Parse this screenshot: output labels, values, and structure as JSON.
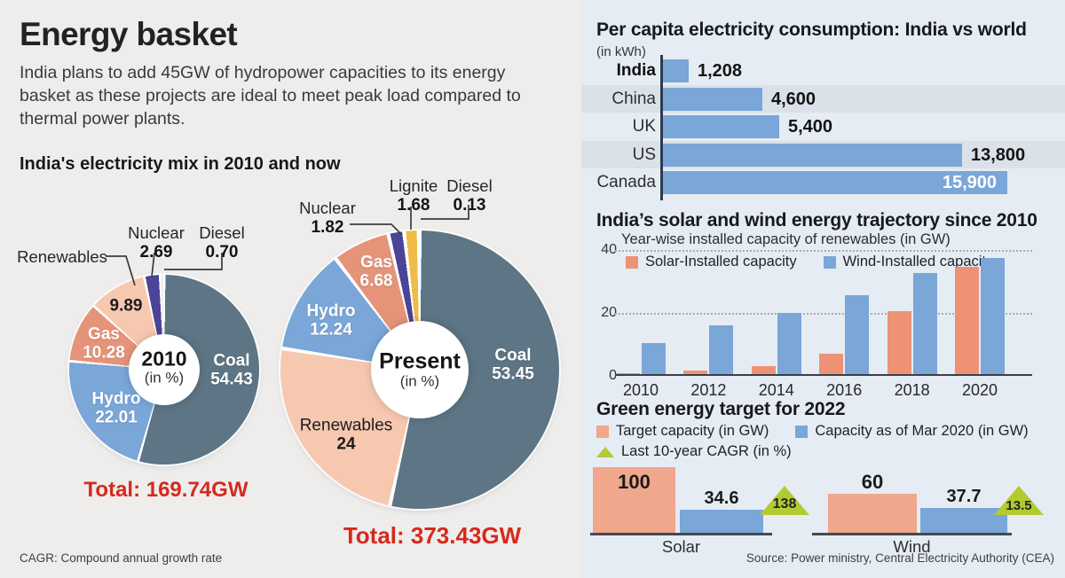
{
  "left": {
    "title": "Energy basket",
    "intro": "India plans to add 45GW of hydropower capacities to its energy basket as these projects are ideal to meet peak load compared to thermal power plants.",
    "section_title": "India's electricity mix in 2010 and now",
    "footnote": "CAGR: Compound annual growth rate"
  },
  "right": {
    "source": "Source: Power ministry, Central Electricity Authority (CEA)"
  },
  "colors": {
    "coal": "#5d7585",
    "hydro": "#7aa6d8",
    "gas": "#e5947a",
    "renewables": "#f6c8b0",
    "nuclear": "#4b4497",
    "lignite": "#f0bc47",
    "diesel": "#eae7e3",
    "bar_blue": "#7aa6d8",
    "solar_salmon": "#ee9276",
    "target_salmon": "#f0a78c",
    "cagr_green": "#b3ca31",
    "accent_red": "#d6291d"
  },
  "chart_data": [
    {
      "type": "pie",
      "name": "electricity_mix_2010",
      "center_label": "2010",
      "center_sub": "(in %)",
      "total": "Total: 169.74GW",
      "slices": [
        {
          "label": "Coal",
          "value": 54.43,
          "display": "54.43",
          "color": "#5d7585"
        },
        {
          "label": "Hydro",
          "value": 22.01,
          "display": "22.01",
          "color": "#7aa6d8"
        },
        {
          "label": "Gas",
          "value": 10.28,
          "display": "10.28",
          "color": "#e5947a"
        },
        {
          "label": "Renewables",
          "value": 9.89,
          "display": "9.89",
          "color": "#f6c8b0"
        },
        {
          "label": "Nuclear",
          "value": 2.69,
          "display": "2.69",
          "color": "#4b4497"
        },
        {
          "label": "Diesel",
          "value": 0.7,
          "display": "0.70",
          "color": "#eae7e3"
        }
      ]
    },
    {
      "type": "pie",
      "name": "electricity_mix_present",
      "center_label": "Present",
      "center_sub": "(in %)",
      "total": "Total: 373.43GW",
      "slices": [
        {
          "label": "Coal",
          "value": 53.45,
          "display": "53.45",
          "color": "#5d7585"
        },
        {
          "label": "Renewables",
          "value": 24,
          "display": "24",
          "color": "#f6c8b0"
        },
        {
          "label": "Hydro",
          "value": 12.24,
          "display": "12.24",
          "color": "#7aa6d8"
        },
        {
          "label": "Gas",
          "value": 6.68,
          "display": "6.68",
          "color": "#e5947a"
        },
        {
          "label": "Nuclear",
          "value": 1.82,
          "display": "1.82",
          "color": "#4b4497"
        },
        {
          "label": "Lignite",
          "value": 1.68,
          "display": "1.68",
          "color": "#f0bc47"
        },
        {
          "label": "Diesel",
          "value": 0.13,
          "display": "0.13",
          "color": "#f4f1ed"
        }
      ]
    },
    {
      "type": "bar",
      "name": "per_capita_consumption",
      "orientation": "horizontal",
      "title": "Per capita electricity consumption: India vs world",
      "unit": "(in kWh)",
      "categories": [
        "India",
        "China",
        "UK",
        "US",
        "Canada"
      ],
      "values": [
        1208,
        4600,
        5400,
        13800,
        15900
      ],
      "value_labels": [
        "1,208",
        "4,600",
        "5,400",
        "13,800",
        "15,900"
      ],
      "xlim": [
        0,
        16300
      ],
      "bar_color": "#7aa6d8"
    },
    {
      "type": "bar",
      "name": "solar_wind_trajectory",
      "grouped": true,
      "title": "India’s solar and wind energy trajectory since 2010",
      "subtitle": "Year-wise installed capacity of renewables (in GW)",
      "categories": [
        "2010",
        "2012",
        "2014",
        "2016",
        "2018",
        "2020"
      ],
      "series": [
        {
          "name": "Solar-Installed capacity",
          "color": "#ee9276",
          "values": [
            0.3,
            1,
            2.6,
            6.5,
            20,
            34
          ]
        },
        {
          "name": "Wind-Installed capacity",
          "color": "#7aa6d8",
          "values": [
            10,
            15.5,
            19.5,
            25,
            32,
            37
          ]
        }
      ],
      "ylim": [
        0,
        40
      ],
      "yticks": [
        "0",
        "20",
        "40"
      ],
      "grid": "horizontal-dotted",
      "legend_position": "top-left"
    },
    {
      "type": "bar",
      "name": "green_energy_target_2022",
      "title": "Green energy target for 2022",
      "legend": [
        {
          "label": "Target capacity (in GW)",
          "color": "#f0a78c",
          "shape": "square"
        },
        {
          "label": "Capacity as of Mar 2020 (in GW)",
          "color": "#7aa6d8",
          "shape": "square"
        },
        {
          "label": "Last 10-year CAGR (in %)",
          "color": "#b3ca31",
          "shape": "triangle"
        }
      ],
      "ylim": [
        0,
        100
      ],
      "groups": [
        {
          "label": "Solar",
          "target": 100,
          "target_label": "100",
          "current": 34.6,
          "current_label": "34.6",
          "cagr": 138,
          "cagr_label": "138"
        },
        {
          "label": "Wind",
          "target": 60,
          "target_label": "60",
          "current": 37.7,
          "current_label": "37.7",
          "cagr": 13.5,
          "cagr_label": "13.5"
        }
      ]
    }
  ]
}
